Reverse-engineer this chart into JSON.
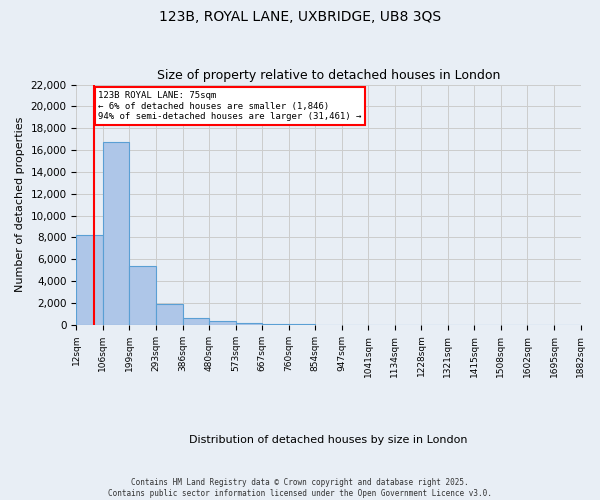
{
  "title1": "123B, ROYAL LANE, UXBRIDGE, UB8 3QS",
  "title2": "Size of property relative to detached houses in London",
  "xlabel": "Distribution of detached houses by size in London",
  "ylabel": "Number of detached properties",
  "bar_values": [
    8200,
    16700,
    5400,
    1900,
    600,
    350,
    150,
    80,
    30,
    20,
    10,
    5,
    3,
    2,
    1,
    1,
    1,
    1,
    1
  ],
  "bin_labels": [
    "12sqm",
    "106sqm",
    "199sqm",
    "293sqm",
    "386sqm",
    "480sqm",
    "573sqm",
    "667sqm",
    "760sqm",
    "854sqm",
    "947sqm",
    "1041sqm",
    "1134sqm",
    "1228sqm",
    "1321sqm",
    "1415sqm",
    "1508sqm",
    "1602sqm",
    "1695sqm",
    "1882sqm"
  ],
  "bar_color": "#aec6e8",
  "bar_edge_color": "#5a9fd4",
  "property_sqm": 75,
  "bin_edges_num": [
    12,
    106,
    199,
    293,
    386,
    480,
    573,
    667,
    760,
    854,
    947,
    1041,
    1134,
    1228,
    1321,
    1415,
    1508,
    1602,
    1695,
    1882
  ],
  "annotation_text": "123B ROYAL LANE: 75sqm\n← 6% of detached houses are smaller (1,846)\n94% of semi-detached houses are larger (31,461) →",
  "annotation_box_color": "white",
  "annotation_border_color": "red",
  "vline_color": "red",
  "ylim": [
    0,
    22000
  ],
  "yticks": [
    0,
    2000,
    4000,
    6000,
    8000,
    10000,
    12000,
    14000,
    16000,
    18000,
    20000,
    22000
  ],
  "grid_color": "#cccccc",
  "bg_color": "#e8eef5",
  "footer1": "Contains HM Land Registry data © Crown copyright and database right 2025.",
  "footer2": "Contains public sector information licensed under the Open Government Licence v3.0."
}
